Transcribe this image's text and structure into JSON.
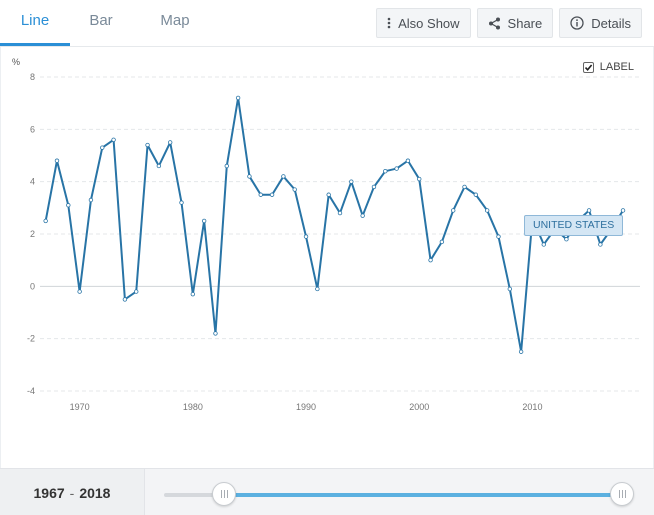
{
  "tabs": [
    {
      "label": "Line",
      "active": true
    },
    {
      "label": "Bar",
      "active": false
    },
    {
      "label": "Map",
      "active": false
    }
  ],
  "toolbar": {
    "also_show": "Also Show",
    "share": "Share",
    "details": "Details"
  },
  "label_toggle": {
    "text": "LABEL",
    "checked": true
  },
  "series_tag": "UNITED STATES",
  "range": {
    "start": "1967",
    "end": "2018",
    "separator": "-",
    "start_fraction": 0.0,
    "end_fraction": 1.0
  },
  "colors": {
    "accent": "#2b8fd6",
    "line": "#2874a6",
    "slider_fill": "#5bb0e0"
  },
  "chart_data": {
    "type": "line",
    "ylabel": "%",
    "ylim": [
      -4,
      8
    ],
    "yticks": [
      -4,
      -2,
      0,
      2,
      4,
      6,
      8
    ],
    "xlim": [
      1966.5,
      2019.5
    ],
    "xticks": [
      1970,
      1980,
      1990,
      2000,
      2010
    ],
    "grid": true,
    "x": [
      1967,
      1968,
      1969,
      1970,
      1971,
      1972,
      1973,
      1974,
      1975,
      1976,
      1977,
      1978,
      1979,
      1980,
      1981,
      1982,
      1983,
      1984,
      1985,
      1986,
      1987,
      1988,
      1989,
      1990,
      1991,
      1992,
      1993,
      1994,
      1995,
      1996,
      1997,
      1998,
      1999,
      2000,
      2001,
      2002,
      2003,
      2004,
      2005,
      2006,
      2007,
      2008,
      2009,
      2010,
      2011,
      2012,
      2013,
      2014,
      2015,
      2016,
      2017,
      2018
    ],
    "series": [
      {
        "name": "UNITED STATES",
        "values": [
          2.5,
          4.8,
          3.1,
          -0.2,
          3.3,
          5.3,
          5.6,
          -0.5,
          -0.2,
          5.4,
          4.6,
          5.5,
          3.2,
          -0.3,
          2.5,
          -1.8,
          4.6,
          7.2,
          4.2,
          3.5,
          3.5,
          4.2,
          3.7,
          1.9,
          -0.1,
          3.5,
          2.8,
          4.0,
          2.7,
          3.8,
          4.4,
          4.5,
          4.8,
          4.1,
          1.0,
          1.7,
          2.9,
          3.8,
          3.5,
          2.9,
          1.9,
          -0.1,
          -2.5,
          2.6,
          1.6,
          2.2,
          1.8,
          2.5,
          2.9,
          1.6,
          2.2,
          2.9
        ]
      }
    ]
  }
}
